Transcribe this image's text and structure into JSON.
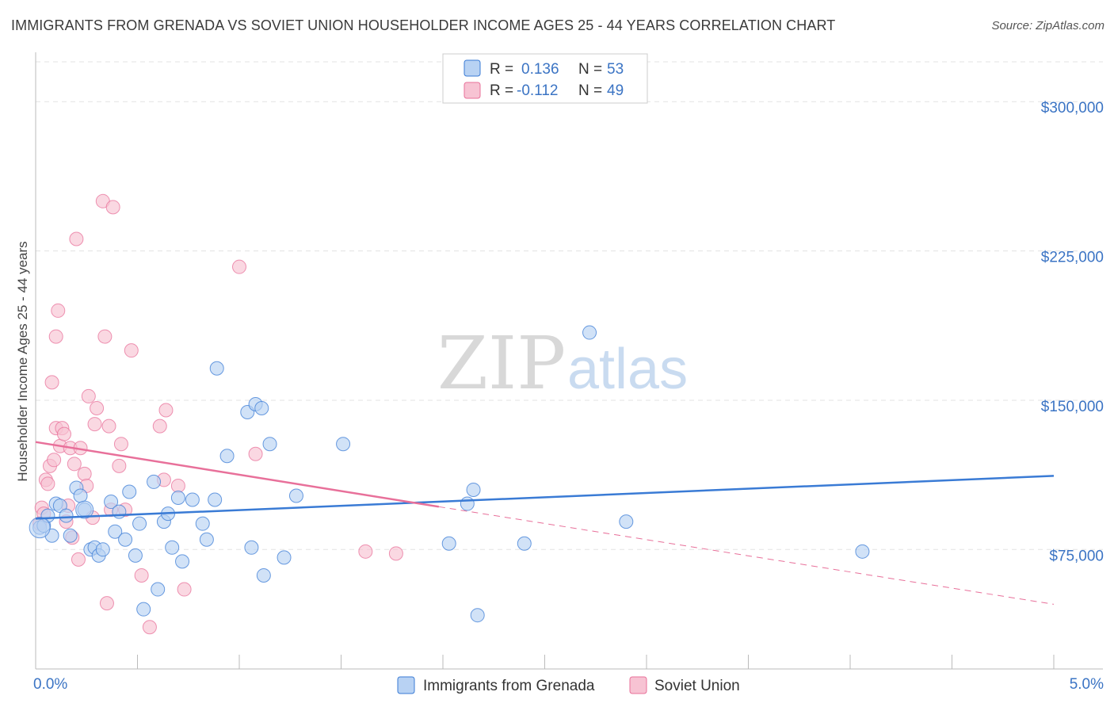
{
  "title": "IMMIGRANTS FROM GRENADA VS SOVIET UNION HOUSEHOLDER INCOME AGES 25 - 44 YEARS CORRELATION CHART",
  "source": "Source: ZipAtlas.com",
  "watermark": {
    "zip": "ZIP",
    "atlas": "atlas"
  },
  "colors": {
    "blue": "#3a7bd5",
    "blue_fill": "#b8d2f3",
    "pink": "#e8709a",
    "pink_fill": "#f7c3d3",
    "axis_text": "#3b74c4"
  },
  "legend_top": {
    "rows": [
      {
        "r_label": "R =",
        "r_value": "0.136",
        "n_label": "N =",
        "n_value": "53"
      },
      {
        "r_label": "R =",
        "r_value": "-0.112",
        "n_label": "N =",
        "n_value": "49"
      }
    ]
  },
  "chart_data": {
    "type": "scatter",
    "title": "IMMIGRANTS FROM GRENADA VS SOVIET UNION HOUSEHOLDER INCOME AGES 25 - 44 YEARS CORRELATION CHART",
    "xlabel": "",
    "ylabel": "Householder Income Ages 25 - 44 years",
    "xlim": [
      0,
      5
    ],
    "ylim": [
      15000,
      320000
    ],
    "x_tick_labels": [
      "0.0%",
      "5.0%"
    ],
    "y_ticks": [
      75000,
      150000,
      225000,
      300000
    ],
    "y_tick_labels": [
      "$75,000",
      "$150,000",
      "$225,000",
      "$300,000"
    ],
    "grid": true,
    "legend_placement": "bottom-center",
    "series": [
      {
        "name": "Immigrants from Grenada",
        "color": "#3a7bd5",
        "points": [
          [
            0.02,
            86000
          ],
          [
            0.04,
            87000
          ],
          [
            0.06,
            92000
          ],
          [
            0.08,
            82000
          ],
          [
            0.1,
            98000
          ],
          [
            0.12,
            97000
          ],
          [
            0.15,
            92000
          ],
          [
            0.17,
            82000
          ],
          [
            0.2,
            106000
          ],
          [
            0.22,
            102000
          ],
          [
            0.24,
            95000
          ],
          [
            0.27,
            75000
          ],
          [
            0.29,
            76000
          ],
          [
            0.31,
            72000
          ],
          [
            0.33,
            75000
          ],
          [
            0.37,
            99000
          ],
          [
            0.39,
            84000
          ],
          [
            0.41,
            94000
          ],
          [
            0.44,
            80000
          ],
          [
            0.46,
            104000
          ],
          [
            0.49,
            72000
          ],
          [
            0.51,
            88000
          ],
          [
            0.53,
            45000
          ],
          [
            0.58,
            109000
          ],
          [
            0.6,
            55000
          ],
          [
            0.63,
            89000
          ],
          [
            0.65,
            93000
          ],
          [
            0.67,
            76000
          ],
          [
            0.7,
            101000
          ],
          [
            0.72,
            69000
          ],
          [
            0.77,
            100000
          ],
          [
            0.82,
            88000
          ],
          [
            0.84,
            80000
          ],
          [
            0.88,
            100000
          ],
          [
            0.89,
            166000
          ],
          [
            0.94,
            122000
          ],
          [
            1.04,
            144000
          ],
          [
            1.06,
            76000
          ],
          [
            1.08,
            148000
          ],
          [
            1.11,
            146000
          ],
          [
            1.12,
            62000
          ],
          [
            1.15,
            128000
          ],
          [
            1.22,
            71000
          ],
          [
            1.28,
            102000
          ],
          [
            1.51,
            128000
          ],
          [
            2.03,
            78000
          ],
          [
            2.12,
            98000
          ],
          [
            2.15,
            105000
          ],
          [
            2.17,
            42000
          ],
          [
            2.4,
            78000
          ],
          [
            2.72,
            184000
          ],
          [
            2.9,
            89000
          ],
          [
            4.06,
            74000
          ]
        ]
      },
      {
        "name": "Soviet Union",
        "color": "#e8709a",
        "points": [
          [
            0.02,
            88000
          ],
          [
            0.03,
            96000
          ],
          [
            0.04,
            93000
          ],
          [
            0.05,
            110000
          ],
          [
            0.06,
            108000
          ],
          [
            0.07,
            117000
          ],
          [
            0.08,
            159000
          ],
          [
            0.09,
            120000
          ],
          [
            0.1,
            136000
          ],
          [
            0.1,
            182000
          ],
          [
            0.11,
            195000
          ],
          [
            0.12,
            127000
          ],
          [
            0.13,
            136000
          ],
          [
            0.14,
            133000
          ],
          [
            0.15,
            89000
          ],
          [
            0.16,
            97000
          ],
          [
            0.17,
            126000
          ],
          [
            0.18,
            81000
          ],
          [
            0.19,
            118000
          ],
          [
            0.21,
            70000
          ],
          [
            0.22,
            126000
          ],
          [
            0.24,
            113000
          ],
          [
            0.25,
            107000
          ],
          [
            0.26,
            152000
          ],
          [
            0.28,
            91000
          ],
          [
            0.29,
            138000
          ],
          [
            0.3,
            146000
          ],
          [
            0.33,
            250000
          ],
          [
            0.34,
            182000
          ],
          [
            0.35,
            48000
          ],
          [
            0.36,
            137000
          ],
          [
            0.37,
            95000
          ],
          [
            0.38,
            247000
          ],
          [
            0.41,
            117000
          ],
          [
            0.42,
            128000
          ],
          [
            0.44,
            95000
          ],
          [
            0.47,
            175000
          ],
          [
            0.52,
            62000
          ],
          [
            0.56,
            36000
          ],
          [
            0.61,
            137000
          ],
          [
            0.63,
            110000
          ],
          [
            0.64,
            145000
          ],
          [
            0.7,
            107000
          ],
          [
            0.73,
            55000
          ],
          [
            0.2,
            231000
          ],
          [
            1.0,
            217000
          ],
          [
            1.08,
            123000
          ],
          [
            1.62,
            74000
          ],
          [
            1.77,
            73000
          ]
        ]
      }
    ],
    "trend_lines": [
      {
        "series": "Immigrants from Grenada",
        "x": [
          0,
          5
        ],
        "y": [
          90500,
          112000
        ],
        "style": "solid"
      },
      {
        "series": "Soviet Union",
        "x": [
          0,
          1.98
        ],
        "y": [
          129000,
          96500
        ],
        "style": "solid"
      },
      {
        "series": "Soviet Union",
        "x": [
          1.98,
          5
        ],
        "y": [
          96500,
          47500
        ],
        "style": "dashed"
      }
    ]
  }
}
